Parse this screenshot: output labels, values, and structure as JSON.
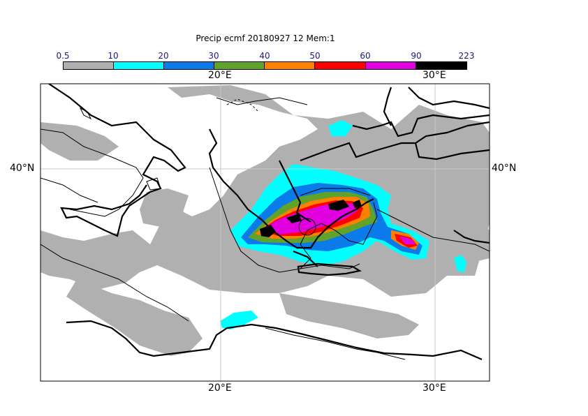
{
  "title": "Precip ecmf 20180927 12 Mem:1",
  "colorbar": {
    "labels": [
      "0.5",
      "10",
      "20",
      "30",
      "40",
      "50",
      "60",
      "90",
      "223"
    ],
    "colors": [
      "#b0b0b0",
      "#00ffff",
      "#0a7be8",
      "#61a22a",
      "#ff8000",
      "#ff0000",
      "#e000e0",
      "#000000"
    ]
  },
  "axes": {
    "top_lon": [
      "20°E",
      "30°E"
    ],
    "bottom_lon": [
      "20°E",
      "30°E"
    ],
    "left_lat": "40°N",
    "right_lat": "40°N"
  },
  "map_colors": {
    "light": "#b0b0b0",
    "cyan": "#00ffff",
    "blue": "#0a7be8",
    "green": "#61a22a",
    "orange": "#ff8000",
    "red": "#ff0000",
    "magenta": "#e000e0",
    "black": "#000000"
  }
}
